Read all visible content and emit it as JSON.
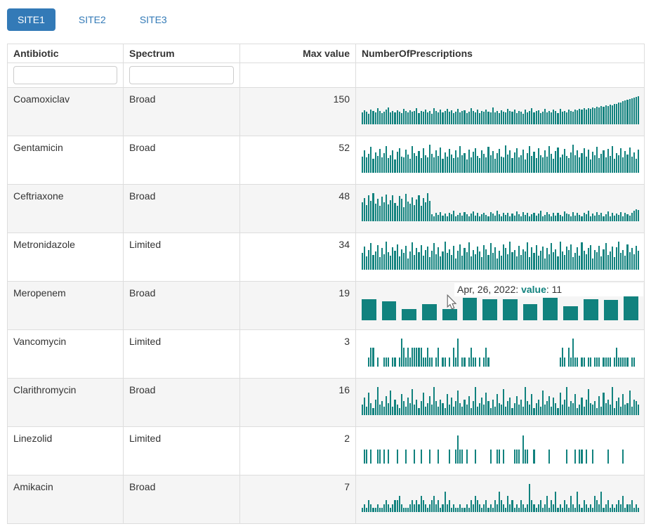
{
  "tabs": [
    {
      "label": "SITE1",
      "active": true
    },
    {
      "label": "SITE2",
      "active": false
    },
    {
      "label": "SITE3",
      "active": false
    }
  ],
  "colors": {
    "accent": "#337ab7",
    "bar": "#11827e",
    "stripe": "#f5f5f5",
    "border": "#dddddd"
  },
  "tooltip": {
    "prefix": "Apr, 26, 2022: ",
    "label": "value",
    "suffix": ": 11"
  },
  "table": {
    "columns": [
      "Antibiotic",
      "Spectrum",
      "Max value",
      "NumberOfPrescriptions"
    ],
    "filters": {
      "antibiotic_value": "",
      "spectrum_value": ""
    },
    "rows": [
      {
        "antibiotic": "Coamoxiclav",
        "spectrum": "Broad",
        "max_value": 150,
        "sparkline": {
          "type": "bar",
          "max": 150,
          "zoomed": false,
          "values": [
            62,
            75,
            68,
            58,
            80,
            70,
            64,
            85,
            72,
            60,
            66,
            78,
            90,
            65,
            70,
            62,
            74,
            68,
            59,
            82,
            71,
            63,
            76,
            66,
            70,
            85,
            61,
            73,
            67,
            79,
            64,
            70,
            58,
            88,
            72,
            65,
            77,
            62,
            70,
            81,
            66,
            74,
            59,
            69,
            83,
            63,
            71,
            76,
            60,
            67,
            85,
            70,
            64,
            78,
            61,
            72,
            66,
            80,
            68,
            63,
            90,
            65,
            71,
            59,
            75,
            68,
            62,
            83,
            70,
            66,
            77,
            61,
            73,
            67,
            58,
            79,
            64,
            72,
            86,
            63,
            70,
            75,
            60,
            68,
            81,
            65,
            73,
            62,
            77,
            70,
            59,
            84,
            66,
            71,
            64,
            78,
            72,
            68,
            80,
            75,
            82,
            78,
            85,
            80,
            88,
            84,
            90,
            87,
            93,
            90,
            96,
            94,
            100,
            98,
            105,
            103,
            110,
            108,
            115,
            118,
            122,
            126,
            130,
            134,
            138,
            142,
            146,
            150
          ]
        }
      },
      {
        "antibiotic": "Gentamicin",
        "spectrum": "Broad",
        "max_value": 52,
        "sparkline": {
          "type": "bar",
          "max": 52,
          "zoomed": false,
          "values": [
            30,
            42,
            28,
            35,
            48,
            26,
            38,
            31,
            44,
            29,
            36,
            50,
            27,
            33,
            41,
            25,
            39,
            46,
            30,
            28,
            43,
            34,
            26,
            49,
            37,
            31,
            40,
            27,
            45,
            33,
            29,
            52,
            35,
            28,
            42,
            31,
            47,
            26,
            38,
            30,
            44,
            34,
            27,
            41,
            29,
            50,
            32,
            36,
            25,
            43,
            28,
            39,
            46,
            31,
            27,
            42,
            35,
            29,
            48,
            33,
            40,
            26,
            37,
            44,
            30,
            28,
            51,
            34,
            41,
            27,
            38,
            46,
            29,
            32,
            43,
            25,
            36,
            49,
            31,
            39,
            27,
            45,
            33,
            28,
            42,
            30,
            50,
            35,
            26,
            40,
            47,
            29,
            34,
            44,
            31,
            27,
            38,
            52,
            33,
            41,
            28,
            36,
            46,
            30,
            43,
            25,
            39,
            32,
            48,
            27,
            35,
            42,
            29,
            44,
            31,
            50,
            26,
            37,
            33,
            45,
            28,
            40,
            34,
            47,
            30,
            38,
            26,
            43
          ]
        }
      },
      {
        "antibiotic": "Ceftriaxone",
        "spectrum": "Broad",
        "max_value": 48,
        "sparkline": {
          "type": "bar",
          "max": 48,
          "zoomed": false,
          "values": [
            32,
            40,
            28,
            45,
            35,
            48,
            30,
            38,
            26,
            42,
            33,
            46,
            29,
            36,
            44,
            31,
            27,
            43,
            39,
            24,
            47,
            34,
            30,
            41,
            28,
            37,
            45,
            26,
            40,
            32,
            48,
            35,
            12,
            9,
            14,
            11,
            16,
            10,
            13,
            8,
            15,
            12,
            18,
            9,
            11,
            14,
            10,
            16,
            12,
            8,
            13,
            17,
            10,
            14,
            9,
            12,
            15,
            11,
            8,
            16,
            13,
            10,
            18,
            12,
            9,
            14,
            11,
            15,
            8,
            13,
            10,
            17,
            12,
            9,
            16,
            11,
            14,
            8,
            12,
            15,
            10,
            13,
            18,
            9,
            11,
            16,
            12,
            8,
            14,
            10,
            15,
            11,
            9,
            17,
            13,
            12,
            8,
            16,
            10,
            14,
            11,
            9,
            15,
            12,
            18,
            8,
            13,
            10,
            16,
            11,
            14,
            9,
            12,
            17,
            8,
            15,
            10,
            13,
            11,
            16,
            9,
            14,
            12,
            10,
            14,
            18,
            21,
            19
          ]
        }
      },
      {
        "antibiotic": "Metronidazole",
        "spectrum": "Limited",
        "max_value": 34,
        "sparkline": {
          "type": "bar",
          "max": 34,
          "zoomed": false,
          "values": [
            20,
            28,
            16,
            24,
            32,
            18,
            22,
            30,
            15,
            26,
            19,
            34,
            21,
            17,
            27,
            23,
            31,
            16,
            25,
            20,
            29,
            14,
            22,
            33,
            18,
            26,
            21,
            30,
            17,
            24,
            28,
            15,
            23,
            32,
            19,
            27,
            16,
            22,
            34,
            20,
            25,
            18,
            29,
            14,
            23,
            31,
            17,
            26,
            21,
            33,
            16,
            24,
            19,
            28,
            22,
            15,
            30,
            25,
            18,
            32,
            20,
            27,
            14,
            23,
            17,
            31,
            26,
            19,
            34,
            21,
            24,
            16,
            29,
            18,
            25,
            22,
            33,
            15,
            27,
            20,
            30,
            17,
            23,
            28,
            14,
            26,
            19,
            32,
            21,
            25,
            16,
            34,
            22,
            18,
            28,
            24,
            31,
            15,
            20,
            27,
            17,
            33,
            23,
            19,
            26,
            30,
            14,
            24,
            21,
            29,
            16,
            25,
            32,
            18,
            22,
            28,
            15,
            27,
            34,
            20,
            24,
            17,
            31,
            21,
            26,
            19,
            29,
            23
          ]
        }
      },
      {
        "antibiotic": "Meropenem",
        "spectrum": "Broad",
        "max_value": 19,
        "show_tooltip": true,
        "sparkline": {
          "type": "bar",
          "max": 19,
          "zoomed": true,
          "values": [
            17,
            15,
            9,
            13,
            9,
            18,
            17,
            17,
            13,
            18,
            11,
            17,
            16,
            19
          ]
        }
      },
      {
        "antibiotic": "Vancomycin",
        "spectrum": "Limited",
        "max_value": 3,
        "sparkline": {
          "type": "bar",
          "max": 3,
          "zoomed": false,
          "values": [
            0,
            0,
            0,
            1,
            2,
            2,
            0,
            1,
            0,
            0,
            1,
            1,
            1,
            0,
            1,
            1,
            0,
            1,
            3,
            2,
            1,
            2,
            1,
            2,
            2,
            2,
            2,
            2,
            1,
            1,
            2,
            1,
            1,
            0,
            1,
            2,
            0,
            1,
            1,
            0,
            1,
            0,
            2,
            1,
            3,
            0,
            1,
            1,
            0,
            1,
            2,
            1,
            1,
            0,
            1,
            0,
            1,
            2,
            1,
            0,
            0,
            0,
            0,
            0,
            0,
            0,
            0,
            0,
            0,
            0,
            0,
            0,
            0,
            0,
            0,
            0,
            0,
            0,
            0,
            0,
            0,
            0,
            0,
            0,
            0,
            0,
            0,
            0,
            0,
            0,
            0,
            1,
            2,
            1,
            0,
            2,
            1,
            3,
            1,
            1,
            0,
            1,
            1,
            0,
            1,
            1,
            0,
            1,
            1,
            1,
            0,
            1,
            1,
            1,
            1,
            0,
            1,
            2,
            1,
            1,
            1,
            1,
            1,
            0,
            1,
            1,
            0,
            0
          ]
        }
      },
      {
        "antibiotic": "Clarithromycin",
        "spectrum": "Broad",
        "max_value": 16,
        "sparkline": {
          "type": "bar",
          "max": 16,
          "zoomed": false,
          "values": [
            6,
            10,
            5,
            13,
            7,
            4,
            9,
            16,
            6,
            8,
            5,
            11,
            7,
            14,
            5,
            9,
            6,
            4,
            12,
            8,
            5,
            10,
            7,
            15,
            6,
            9,
            4,
            8,
            13,
            5,
            7,
            11,
            6,
            16,
            8,
            5,
            9,
            7,
            4,
            12,
            6,
            10,
            5,
            8,
            14,
            7,
            5,
            9,
            6,
            11,
            4,
            8,
            16,
            5,
            7,
            10,
            6,
            13,
            8,
            4,
            9,
            5,
            12,
            7,
            6,
            15,
            5,
            8,
            10,
            4,
            7,
            11,
            6,
            9,
            5,
            16,
            8,
            6,
            12,
            4,
            7,
            9,
            5,
            14,
            6,
            8,
            11,
            5,
            10,
            7,
            4,
            13,
            6,
            9,
            16,
            5,
            8,
            7,
            12,
            4,
            6,
            10,
            5,
            9,
            15,
            7,
            6,
            8,
            4,
            11,
            5,
            13,
            7,
            9,
            6,
            16,
            4,
            8,
            10,
            5,
            12,
            6,
            7,
            14,
            5,
            9,
            8,
            6
          ]
        }
      },
      {
        "antibiotic": "Linezolid",
        "spectrum": "Limited",
        "max_value": 2,
        "sparkline": {
          "type": "bar",
          "max": 2,
          "zoomed": false,
          "values": [
            0,
            1,
            1,
            0,
            1,
            0,
            0,
            1,
            1,
            0,
            1,
            0,
            1,
            0,
            0,
            0,
            1,
            0,
            0,
            0,
            1,
            0,
            0,
            0,
            1,
            0,
            0,
            1,
            0,
            0,
            0,
            1,
            0,
            0,
            0,
            1,
            0,
            0,
            0,
            0,
            1,
            0,
            0,
            1,
            2,
            1,
            1,
            0,
            1,
            0,
            0,
            0,
            1,
            0,
            0,
            0,
            0,
            0,
            0,
            1,
            0,
            0,
            1,
            1,
            0,
            1,
            0,
            0,
            0,
            0,
            1,
            1,
            1,
            0,
            2,
            1,
            1,
            0,
            0,
            1,
            0,
            0,
            0,
            0,
            0,
            0,
            1,
            0,
            0,
            0,
            0,
            0,
            0,
            0,
            1,
            0,
            0,
            0,
            1,
            0,
            1,
            1,
            0,
            1,
            0,
            0,
            1,
            0,
            0,
            0,
            0,
            0,
            0,
            1,
            0,
            0,
            0,
            0,
            0,
            0,
            1,
            0,
            0,
            0,
            0,
            0,
            0,
            0
          ]
        }
      },
      {
        "antibiotic": "Amikacin",
        "spectrum": "Broad",
        "max_value": 7,
        "sparkline": {
          "type": "bar",
          "max": 7,
          "zoomed": false,
          "values": [
            1,
            2,
            1,
            3,
            2,
            1,
            1,
            2,
            1,
            1,
            2,
            3,
            2,
            1,
            2,
            3,
            3,
            4,
            2,
            1,
            1,
            1,
            2,
            3,
            2,
            3,
            2,
            4,
            3,
            2,
            1,
            2,
            3,
            4,
            2,
            3,
            1,
            2,
            5,
            2,
            3,
            1,
            2,
            1,
            1,
            2,
            1,
            1,
            2,
            1,
            3,
            2,
            4,
            3,
            2,
            1,
            2,
            3,
            1,
            2,
            1,
            3,
            2,
            5,
            3,
            2,
            1,
            4,
            2,
            3,
            1,
            2,
            1,
            3,
            2,
            1,
            2,
            7,
            3,
            2,
            1,
            2,
            3,
            1,
            2,
            4,
            1,
            3,
            2,
            5,
            1,
            2,
            1,
            3,
            2,
            1,
            4,
            2,
            1,
            5,
            2,
            1,
            3,
            2,
            1,
            2,
            1,
            4,
            3,
            2,
            5,
            1,
            2,
            3,
            1,
            2,
            1,
            2,
            3,
            2,
            4,
            1,
            2,
            2,
            3,
            1,
            2,
            1
          ]
        }
      }
    ]
  }
}
